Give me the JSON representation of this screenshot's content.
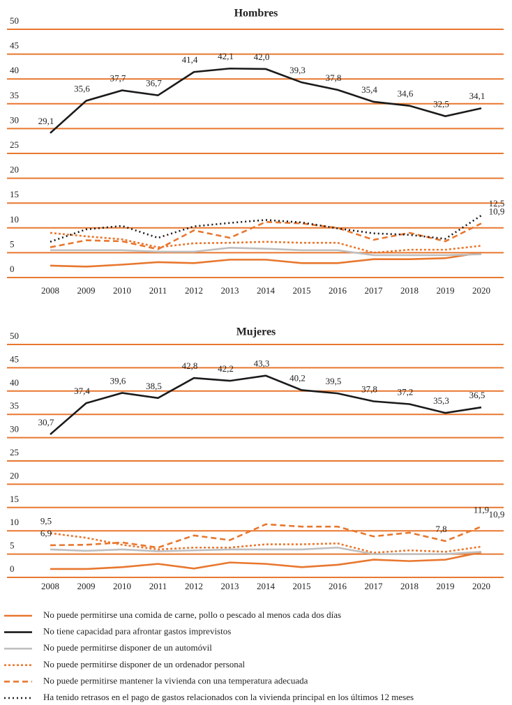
{
  "chart_data": [
    {
      "type": "line",
      "title": "Hombres",
      "x": [
        "2008",
        "2009",
        "2010",
        "2011",
        "2012",
        "2013",
        "2014",
        "2015",
        "2016",
        "2017",
        "2018",
        "2019",
        "2020"
      ],
      "ylim": [
        0,
        50
      ],
      "yticks": [
        0,
        5,
        10,
        15,
        20,
        25,
        30,
        35,
        40,
        45,
        50
      ],
      "grid": true,
      "grid_color": "#e8772e",
      "series": [
        {
          "color": "#e8772e",
          "dash": "none",
          "values": [
            2.4,
            2.2,
            2.6,
            3.1,
            2.9,
            3.6,
            3.6,
            2.9,
            2.9,
            3.7,
            3.7,
            3.9,
            5.0
          ]
        },
        {
          "color": "#1a1a1a",
          "dash": "none",
          "values": [
            29.1,
            35.6,
            37.7,
            36.7,
            41.4,
            42.1,
            42.0,
            39.3,
            37.8,
            35.4,
            34.6,
            32.5,
            34.1
          ],
          "value_labels": [
            "29,1",
            "35,6",
            "37,7",
            "36,7",
            "41,4",
            "42,1",
            "42,0",
            "39,3",
            "37,8",
            "35,4",
            "34,6",
            "32,5",
            "34,1"
          ]
        },
        {
          "color": "#bfbfbf",
          "dash": "none",
          "values": [
            5.5,
            5.5,
            5.5,
            5.2,
            5.2,
            6.0,
            5.8,
            5.5,
            5.5,
            4.5,
            4.5,
            4.5,
            4.7
          ]
        },
        {
          "color": "#e8772e",
          "dash": "3,3",
          "values": [
            9.0,
            8.3,
            7.7,
            6.1,
            6.9,
            7.0,
            7.2,
            7.0,
            7.0,
            5.0,
            5.6,
            5.6,
            6.4
          ]
        },
        {
          "color": "#e8772e",
          "dash": "8,5",
          "values": [
            6.1,
            7.5,
            7.3,
            5.7,
            9.5,
            8.0,
            11.2,
            10.9,
            10.0,
            7.6,
            9.0,
            7.3,
            10.9
          ],
          "value_labels": [
            null,
            null,
            null,
            null,
            null,
            null,
            null,
            null,
            null,
            null,
            null,
            null,
            "10,9"
          ]
        },
        {
          "color": "#1a1a1a",
          "dash": "2,4",
          "values": [
            7.2,
            9.7,
            10.4,
            8.0,
            10.3,
            11.0,
            11.6,
            11.1,
            9.9,
            8.9,
            8.6,
            7.8,
            12.5
          ],
          "value_labels": [
            null,
            null,
            null,
            null,
            null,
            null,
            null,
            null,
            null,
            null,
            null,
            null,
            "12,5"
          ]
        }
      ]
    },
    {
      "type": "line",
      "title": "Mujeres",
      "x": [
        "2008",
        "2009",
        "2010",
        "2011",
        "2012",
        "2013",
        "2014",
        "2015",
        "2016",
        "2017",
        "2018",
        "2019",
        "2020"
      ],
      "ylim": [
        0,
        50
      ],
      "yticks": [
        0,
        5,
        10,
        15,
        20,
        25,
        30,
        35,
        40,
        45,
        50
      ],
      "grid": true,
      "grid_color": "#e8772e",
      "series": [
        {
          "color": "#e8772e",
          "dash": "none",
          "values": [
            1.8,
            1.8,
            2.2,
            2.9,
            1.9,
            3.2,
            2.9,
            2.2,
            2.7,
            3.8,
            3.5,
            3.8,
            5.4
          ]
        },
        {
          "color": "#1a1a1a",
          "dash": "none",
          "values": [
            30.7,
            37.4,
            39.6,
            38.5,
            42.8,
            42.2,
            43.3,
            40.2,
            39.5,
            37.8,
            37.2,
            35.3,
            36.5
          ],
          "value_labels": [
            "30,7",
            "37,4",
            "39,6",
            "38,5",
            "42,8",
            "42,2",
            "43,3",
            "40,2",
            "39,5",
            "37,8",
            "37,2",
            "35,3",
            "36,5"
          ]
        },
        {
          "color": "#bfbfbf",
          "dash": "none",
          "values": [
            6.0,
            5.7,
            6.0,
            5.6,
            5.8,
            6.0,
            6.0,
            6.0,
            6.4,
            5.0,
            5.0,
            5.0,
            5.5
          ]
        },
        {
          "color": "#e8772e",
          "dash": "3,3",
          "values": [
            9.5,
            8.5,
            7.0,
            6.0,
            6.4,
            6.4,
            7.1,
            7.1,
            7.3,
            5.3,
            5.8,
            5.5,
            6.6
          ],
          "value_labels": [
            "9,5",
            null,
            null,
            null,
            null,
            null,
            null,
            null,
            null,
            null,
            null,
            null,
            null
          ]
        },
        {
          "color": "#e8772e",
          "dash": "8,5",
          "values": [
            6.9,
            7.0,
            7.5,
            6.4,
            9.0,
            8.0,
            11.4,
            10.9,
            10.9,
            8.8,
            9.6,
            7.8,
            10.9
          ],
          "value_labels": [
            "6,9",
            null,
            null,
            null,
            null,
            null,
            null,
            null,
            null,
            null,
            null,
            "7,8",
            "10,9"
          ]
        }
      ],
      "annotations": [
        {
          "text": "11,9",
          "x": "2020",
          "y": 11.9
        }
      ]
    }
  ],
  "legend": [
    {
      "name": "No puede permitirse una comida de carne, pollo o pescado al menos cada dos días",
      "color": "#e8772e",
      "dash": "none"
    },
    {
      "name": "No tiene capacidad para afrontar gastos imprevistos",
      "color": "#1a1a1a",
      "dash": "none"
    },
    {
      "name": "No puede permitirse disponer de un automóvil",
      "color": "#bfbfbf",
      "dash": "none"
    },
    {
      "name": "No puede permitirse disponer de un ordenador personal",
      "color": "#e8772e",
      "dash": "3,3"
    },
    {
      "name": "No puede permitirse mantener la vivienda con una temperatura adecuada",
      "color": "#e8772e",
      "dash": "8,5"
    },
    {
      "name": "Ha tenido retrasos en el pago de gastos relacionados con la vivienda principal en los últimos 12 meses",
      "color": "#1a1a1a",
      "dash": "2,4"
    }
  ]
}
